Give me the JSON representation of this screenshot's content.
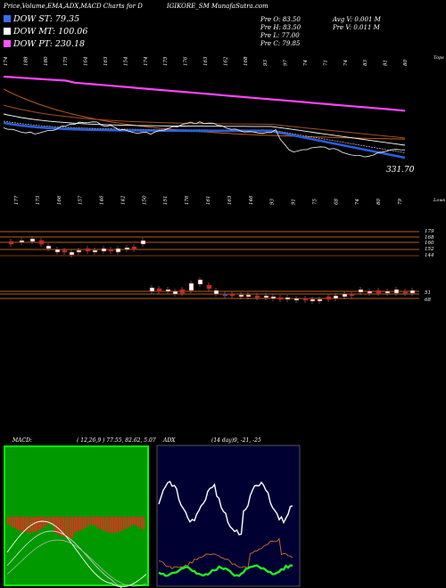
{
  "header": {
    "title": "Price,Volume,EMA,ADX,MACD Charts for D",
    "source": "IGIKORE_SM MunafaSutra.com",
    "prev_open": "Pre  O: 83.50",
    "prev_high": "Pre  H: 83.50",
    "prev_low": "Pre  L: 77.00",
    "prev_close": "Pre  C: 79.85",
    "avg_volume": "Avg V: 0.001 M",
    "prev_volume": "Pre  V: 0.011 M"
  },
  "legend": [
    {
      "label": "DOW ST: 79.35",
      "color": "#3a6df0"
    },
    {
      "label": "DOW MT: 100.06",
      "color": "#ffffff"
    },
    {
      "label": "DOW PT: 230.18",
      "color": "#ff55ff"
    }
  ],
  "colors": {
    "up": "#cc2222",
    "down": "#cc2222",
    "volume_line": "#b06020",
    "ema_long": "#d06020",
    "ema_pt": "#ff44ff",
    "ema_st": "#2a5ee0",
    "macd_bg": "#00ff00",
    "adx_bg": "#000033"
  },
  "chart_data": [
    {
      "type": "line",
      "name": "price-ema-panel",
      "top_labels": [
        "174",
        "188",
        "180",
        "175",
        "164",
        "163",
        "154",
        "174",
        "175",
        "176",
        "163",
        "162",
        "168",
        "93",
        "97",
        "74",
        "71",
        "74",
        "83",
        "81",
        "80"
      ],
      "bottom_labels": [
        "177",
        "173",
        "166",
        "157",
        "146",
        "142",
        "150",
        "151",
        "176",
        "161",
        "163",
        "146",
        "93",
        "91",
        "75",
        "68",
        "74",
        "80",
        "79"
      ],
      "corner_top": "Tops",
      "corner_bottom": "Lows",
      "last_price_label": "331.70",
      "series": [
        {
          "name": "",
          "color": "#ff44ff",
          "values": [
            560,
            555,
            548,
            542,
            536,
            530,
            524,
            518,
            512,
            506,
            500,
            494,
            488,
            482,
            476,
            470,
            464,
            458,
            452,
            446
          ]
        },
        {
          "name": "",
          "color": "#d06020",
          "values": [
            470,
            450,
            430,
            410,
            396,
            384,
            374,
            366,
            360,
            355,
            352,
            350,
            348,
            346,
            345,
            344,
            343,
            342,
            341,
            340
          ]
        },
        {
          "name": "",
          "color": "#2a5ee0",
          "values": [
            420,
            410,
            400,
            392,
            388,
            386,
            385,
            384,
            383,
            384,
            382,
            380,
            378,
            372,
            360,
            350,
            342,
            336,
            333,
            332
          ]
        }
      ]
    },
    {
      "type": "bar",
      "name": "volume-levels-panel",
      "level_labels": [
        "179",
        "168",
        "160",
        "152",
        "144",
        "51",
        "68"
      ]
    },
    {
      "type": "line",
      "name": "macd-panel",
      "title": "MACD:",
      "params": "( 12,26,9 ) 77.55,  82.62,  5.07"
    },
    {
      "type": "line",
      "name": "adx-panel",
      "title": "ADX",
      "params": "(14  day)9,  -21,  -25"
    }
  ]
}
